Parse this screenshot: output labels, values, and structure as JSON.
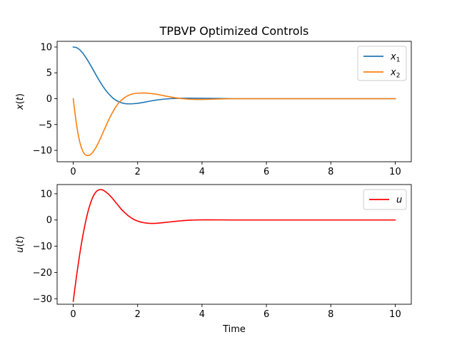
{
  "chart_data": [
    {
      "type": "line",
      "title": "TPBVP Optimized Controls",
      "xlabel": "",
      "ylabel": "x(t)",
      "xlim": [
        -0.5,
        10.5
      ],
      "ylim": [
        -12.2,
        11.1
      ],
      "xticks": [
        0,
        2,
        4,
        6,
        8,
        10
      ],
      "yticks": [
        10,
        5,
        0,
        -5,
        -10
      ],
      "legend_position": "top-right",
      "grid": false,
      "series": [
        {
          "name": "x1",
          "legend_base": "x",
          "legend_sub": "1",
          "color": "#1f77b4",
          "x": [
            0,
            0.1,
            0.2,
            0.3,
            0.4,
            0.5,
            0.6,
            0.7,
            0.8,
            0.9,
            1.0,
            1.1,
            1.2,
            1.3,
            1.4,
            1.5,
            1.6,
            1.7,
            1.8,
            2.0,
            2.2,
            2.4,
            2.6,
            2.8,
            3.0,
            3.3,
            3.6,
            4.0,
            4.5,
            5.0,
            6.0,
            7.0,
            8.0,
            9.0,
            10.0
          ],
          "y": [
            10.0,
            9.9,
            9.5,
            8.8,
            7.9,
            6.9,
            5.8,
            4.7,
            3.6,
            2.6,
            1.7,
            0.95,
            0.3,
            -0.2,
            -0.55,
            -0.8,
            -0.95,
            -1.0,
            -1.0,
            -0.9,
            -0.7,
            -0.45,
            -0.25,
            -0.1,
            0.0,
            0.08,
            0.1,
            0.08,
            0.04,
            0.0,
            0.0,
            0.0,
            0.0,
            0.0,
            0.0
          ]
        },
        {
          "name": "x2",
          "legend_base": "x",
          "legend_sub": "2",
          "color": "#ff7f0e",
          "x": [
            0,
            0.05,
            0.1,
            0.15,
            0.2,
            0.25,
            0.3,
            0.35,
            0.4,
            0.45,
            0.5,
            0.55,
            0.6,
            0.7,
            0.8,
            0.9,
            1.0,
            1.1,
            1.2,
            1.3,
            1.4,
            1.5,
            1.6,
            1.7,
            1.8,
            1.9,
            2.0,
            2.1,
            2.2,
            2.3,
            2.4,
            2.6,
            2.8,
            3.0,
            3.2,
            3.4,
            3.6,
            3.8,
            4.0,
            4.3,
            4.6,
            5.0,
            6.0,
            7.0,
            8.0,
            9.0,
            10.0
          ],
          "y": [
            0.0,
            -2.6,
            -4.9,
            -6.8,
            -8.3,
            -9.4,
            -10.2,
            -10.7,
            -10.95,
            -11.0,
            -10.95,
            -10.75,
            -10.4,
            -9.5,
            -8.3,
            -6.9,
            -5.5,
            -4.1,
            -2.9,
            -1.8,
            -0.9,
            -0.25,
            0.25,
            0.6,
            0.85,
            1.0,
            1.05,
            1.1,
            1.1,
            1.08,
            1.0,
            0.85,
            0.6,
            0.35,
            0.15,
            0.0,
            -0.1,
            -0.15,
            -0.15,
            -0.1,
            -0.05,
            0.0,
            0.0,
            0.0,
            0.0,
            0.0,
            0.0
          ]
        }
      ]
    },
    {
      "type": "line",
      "title": "",
      "xlabel": "Time",
      "ylabel": "u(t)",
      "xlim": [
        -0.5,
        10.5
      ],
      "ylim": [
        -32.1,
        13.5
      ],
      "xticks": [
        0,
        2,
        4,
        6,
        8,
        10
      ],
      "yticks": [
        10,
        0,
        -10,
        -20,
        -30
      ],
      "legend_position": "top-right",
      "grid": false,
      "series": [
        {
          "name": "u",
          "legend_base": "u",
          "legend_sub": "",
          "color": "#ff0000",
          "x": [
            0,
            0.05,
            0.1,
            0.15,
            0.2,
            0.25,
            0.3,
            0.35,
            0.4,
            0.45,
            0.5,
            0.55,
            0.6,
            0.65,
            0.7,
            0.75,
            0.8,
            0.85,
            0.9,
            0.95,
            1.0,
            1.1,
            1.2,
            1.3,
            1.4,
            1.5,
            1.6,
            1.7,
            1.8,
            1.9,
            2.0,
            2.1,
            2.2,
            2.3,
            2.4,
            2.5,
            2.6,
            2.7,
            2.8,
            3.0,
            3.2,
            3.4,
            3.6,
            3.8,
            4.0,
            4.3,
            4.6,
            5.0,
            6.0,
            7.0,
            8.0,
            9.0,
            10.0
          ],
          "y": [
            -31.0,
            -26.2,
            -21.6,
            -17.3,
            -13.2,
            -9.4,
            -5.9,
            -2.7,
            0.2,
            2.8,
            5.0,
            6.9,
            8.5,
            9.7,
            10.6,
            11.2,
            11.5,
            11.6,
            11.5,
            11.2,
            10.8,
            9.8,
            8.5,
            7.0,
            5.5,
            4.0,
            2.8,
            1.7,
            0.8,
            0.1,
            -0.4,
            -0.8,
            -1.05,
            -1.2,
            -1.3,
            -1.3,
            -1.25,
            -1.15,
            -1.0,
            -0.75,
            -0.5,
            -0.25,
            -0.1,
            0.0,
            0.05,
            0.05,
            0.03,
            0.0,
            0.0,
            0.0,
            0.0,
            0.0,
            0.0
          ]
        }
      ]
    }
  ]
}
